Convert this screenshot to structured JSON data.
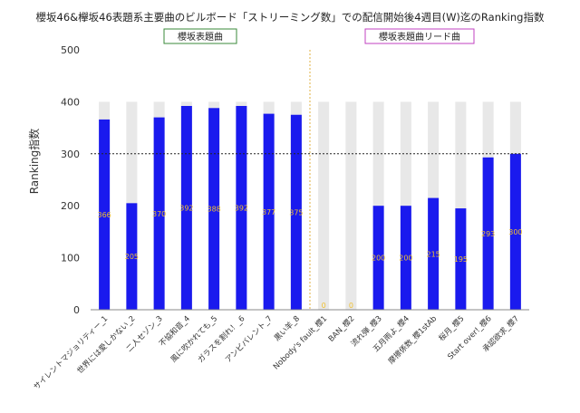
{
  "chart_data": {
    "type": "bar",
    "title": "櫻坂46&欅坂46表題系主要曲のビルボード「ストリーミング数」での配信開始後4週目(W)迄のRanking指数",
    "ylabel": "Ranking指数",
    "xlabel": "",
    "ylim": [
      0,
      500
    ],
    "yticks": [
      0,
      100,
      200,
      300,
      400,
      500
    ],
    "reference_line": 300,
    "background_cap": 400,
    "grid": false,
    "colors": {
      "bar": "#1a1aee",
      "background_bar": "#e8e8e8",
      "value_label": "#f0c030",
      "divider": "#e0b040",
      "box_green": "#3a8a3a",
      "box_purple": "#c040c0"
    },
    "groups": [
      {
        "label": "櫻坂表題曲",
        "start_index": 0,
        "end_index": 7
      },
      {
        "label": "櫻坂表題曲リード曲",
        "start_index": 8,
        "end_index": 15
      }
    ],
    "categories": [
      "サイレントマジョリティー_1",
      "世界には愛しかない_2",
      "二人セゾン_3",
      "不協和音_4",
      "風に吹かれても_5",
      "ガラスを割れ！_6",
      "アンビバレント_7",
      "黒い羊_8",
      "Nobody's fault_櫻1",
      "BAN_櫻2",
      "流れ弾_櫻3",
      "五月雨よ_櫻4",
      "摩擦係数_櫻1stAb",
      "桜月_櫻5",
      "Start over!_櫻6",
      "承認欲求_櫻7"
    ],
    "values": [
      366,
      205,
      370,
      392,
      388,
      392,
      377,
      375,
      0,
      0,
      200,
      200,
      215,
      195,
      293,
      300
    ]
  }
}
